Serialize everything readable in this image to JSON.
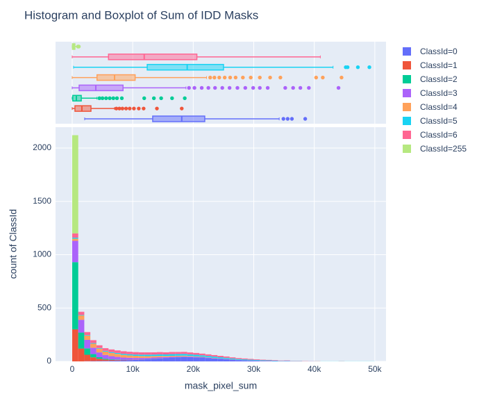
{
  "chart_data": {
    "type": "histogram",
    "title": "Histogram and Boxplot of Sum of IDD Masks",
    "xlabel": "mask_pixel_sum",
    "ylabel": "count of ClassId",
    "bins": [
      0,
      1000,
      2000,
      3000,
      4000,
      5000,
      6000,
      7000,
      8000,
      9000,
      10000,
      11000,
      12000,
      13000,
      14000,
      15000,
      16000,
      17000,
      18000,
      19000,
      20000,
      21000,
      22000,
      23000,
      24000,
      25000,
      26000,
      27000,
      28000,
      29000,
      30000,
      31000,
      32000,
      33000,
      34000,
      35000,
      36000,
      37000,
      38000,
      39000,
      40000,
      41000,
      42000,
      43000,
      44000,
      45000,
      46000,
      47000,
      48000,
      49000,
      50000
    ],
    "xlim": [
      -2750,
      51850
    ],
    "ylim": [
      0,
      2195
    ],
    "xticks": [
      0,
      {
        "value": 10000,
        "label": "10k"
      },
      {
        "value": 20000,
        "label": "20k"
      },
      {
        "value": 30000,
        "label": "30k"
      },
      {
        "value": 40000,
        "label": "40k"
      },
      {
        "value": 50000,
        "label": "50k"
      }
    ],
    "yticks": [
      0,
      500,
      1000,
      1500,
      2000
    ],
    "grid": true,
    "legend": "right",
    "series": [
      {
        "name": "ClassId=0",
        "color": "#636efa",
        "values": [
          0,
          0,
          2,
          3,
          4,
          5,
          6,
          8,
          10,
          12,
          14,
          16,
          20,
          24,
          28,
          32,
          36,
          38,
          40,
          40,
          38,
          36,
          32,
          28,
          24,
          20,
          16,
          12,
          10,
          8,
          6,
          5,
          4,
          3,
          2,
          2,
          1,
          1,
          0,
          0,
          0,
          0,
          0,
          0,
          0,
          0,
          0,
          0,
          0,
          0
        ],
        "lowerfence": 2060,
        "q1": 13300,
        "median": 18100,
        "q3": 21900,
        "upperfence": 34200,
        "outliers": [
          34900,
          35600,
          36300,
          38500
        ]
      },
      {
        "name": "ClassId=1",
        "color": "#EF553B",
        "values": [
          300,
          120,
          60,
          35,
          20,
          12,
          8,
          6,
          4,
          3,
          2,
          2,
          1,
          1,
          1,
          0,
          0,
          0,
          1,
          0,
          0,
          0,
          0,
          0,
          0,
          0,
          0,
          0,
          0,
          0,
          0,
          0,
          0,
          0,
          0,
          0,
          0,
          0,
          0,
          0,
          0,
          0,
          0,
          0,
          0,
          0,
          0,
          0,
          0,
          0
        ],
        "lowerfence": 0,
        "q1": 460,
        "median": 1600,
        "q3": 3100,
        "upperfence": 7000,
        "outliers": [
          7300,
          7800,
          8300,
          8900,
          9500,
          10200,
          11000,
          11800,
          14000,
          18100
        ]
      },
      {
        "name": "ClassId=2",
        "color": "#00cc96",
        "values": [
          630,
          150,
          60,
          30,
          15,
          8,
          5,
          3,
          2,
          1,
          1,
          1,
          1,
          1,
          1,
          0,
          0,
          1,
          1,
          0,
          0,
          0,
          0,
          0,
          0,
          0,
          0,
          0,
          0,
          0,
          0,
          0,
          0,
          0,
          0,
          0,
          0,
          0,
          0,
          0,
          0,
          0,
          0,
          0,
          0,
          0,
          0,
          0,
          0,
          0
        ],
        "lowerfence": 0,
        "q1": 100,
        "median": 690,
        "q3": 1500,
        "upperfence": 4100,
        "outliers": [
          4500,
          5000,
          5600,
          6200,
          6800,
          7400,
          8200,
          11900,
          13500,
          14700,
          16500,
          18600
        ]
      },
      {
        "name": "ClassId=3",
        "color": "#ab63fa",
        "values": [
          200,
          120,
          80,
          60,
          45,
          35,
          30,
          25,
          20,
          18,
          15,
          13,
          11,
          10,
          9,
          8,
          7,
          6,
          5,
          5,
          4,
          3,
          3,
          2,
          2,
          2,
          1,
          1,
          1,
          1,
          1,
          0,
          1,
          0,
          0,
          1,
          0,
          0,
          0,
          1,
          0,
          0,
          0,
          0,
          1,
          0,
          0,
          0,
          0,
          0
        ],
        "lowerfence": 0,
        "q1": 1150,
        "median": 3900,
        "q3": 8400,
        "upperfence": 18800,
        "outliers": [
          19300,
          20200,
          21400,
          22500,
          23600,
          24800,
          26000,
          27300,
          28600,
          29900,
          31000,
          32300,
          35200,
          36500,
          37700,
          39100,
          44000
        ]
      },
      {
        "name": "ClassId=4",
        "color": "#FFA15A",
        "values": [
          20,
          40,
          40,
          38,
          35,
          32,
          30,
          28,
          25,
          22,
          20,
          18,
          16,
          14,
          12,
          10,
          9,
          8,
          7,
          6,
          5,
          4,
          3,
          3,
          2,
          2,
          2,
          1,
          1,
          1,
          1,
          1,
          1,
          0,
          0,
          0,
          0,
          0,
          0,
          0,
          1,
          0,
          0,
          0,
          1,
          0,
          0,
          0,
          0,
          0
        ],
        "lowerfence": 0,
        "q1": 4100,
        "median": 7000,
        "q3": 10400,
        "upperfence": 22200,
        "outliers": [
          22800,
          23500,
          24300,
          25200,
          26100,
          27000,
          28200,
          29500,
          31000,
          32700,
          34400,
          40300,
          41400,
          44500
        ]
      },
      {
        "name": "ClassId=5",
        "color": "#19d3f3",
        "values": [
          10,
          5,
          5,
          6,
          6,
          7,
          8,
          9,
          10,
          11,
          12,
          13,
          14,
          14,
          15,
          15,
          16,
          16,
          16,
          15,
          15,
          14,
          13,
          12,
          11,
          10,
          9,
          8,
          7,
          6,
          5,
          5,
          4,
          4,
          3,
          3,
          2,
          2,
          1,
          1,
          1,
          1,
          1,
          1,
          1,
          1,
          1,
          1,
          1,
          1
        ],
        "lowerfence": 230,
        "q1": 12400,
        "median": 19000,
        "q3": 25000,
        "upperfence": 43100,
        "outliers": [
          45200,
          45500,
          47200,
          49100
        ]
      },
      {
        "name": "ClassId=6",
        "color": "#FF6692",
        "values": [
          40,
          30,
          28,
          27,
          26,
          25,
          25,
          24,
          24,
          23,
          23,
          22,
          22,
          21,
          21,
          20,
          20,
          19,
          19,
          18,
          17,
          16,
          15,
          14,
          13,
          12,
          10,
          9,
          8,
          7,
          6,
          5,
          4,
          4,
          3,
          3,
          2,
          2,
          2,
          1,
          1,
          0,
          0,
          0,
          0,
          0,
          0,
          0,
          0,
          0
        ],
        "lowerfence": 0,
        "q1": 6000,
        "median": 11900,
        "q3": 20600,
        "upperfence": 41000,
        "outliers": []
      },
      {
        "name": "ClassId=255",
        "color": "#B6E880",
        "values": [
          920,
          0,
          0,
          0,
          0,
          0,
          0,
          0,
          0,
          0,
          0,
          0,
          0,
          0,
          0,
          0,
          0,
          0,
          0,
          0,
          0,
          0,
          0,
          0,
          0,
          0,
          0,
          0,
          0,
          0,
          0,
          0,
          0,
          0,
          0,
          0,
          0,
          0,
          0,
          0,
          0,
          0,
          0,
          0,
          0,
          0,
          0,
          0,
          0,
          0
        ],
        "lowerfence": 0,
        "q1": 50,
        "median": 250,
        "q3": 450,
        "upperfence": 900,
        "outliers": [
          950,
          1100
        ]
      }
    ]
  }
}
